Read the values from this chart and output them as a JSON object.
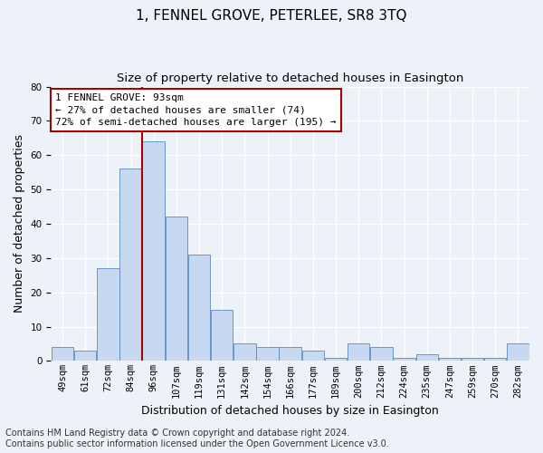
{
  "title": "1, FENNEL GROVE, PETERLEE, SR8 3TQ",
  "subtitle": "Size of property relative to detached houses in Easington",
  "xlabel": "Distribution of detached houses by size in Easington",
  "ylabel": "Number of detached properties",
  "categories": [
    "49sqm",
    "61sqm",
    "72sqm",
    "84sqm",
    "96sqm",
    "107sqm",
    "119sqm",
    "131sqm",
    "142sqm",
    "154sqm",
    "166sqm",
    "177sqm",
    "189sqm",
    "200sqm",
    "212sqm",
    "224sqm",
    "235sqm",
    "247sqm",
    "259sqm",
    "270sqm",
    "282sqm"
  ],
  "values": [
    4,
    3,
    27,
    56,
    64,
    42,
    31,
    15,
    5,
    4,
    4,
    3,
    1,
    5,
    4,
    1,
    2,
    1,
    1,
    1,
    5
  ],
  "bar_color": "#c6d9f0",
  "bar_edge_color": "#5a8abf",
  "vline_color": "#aa0000",
  "vline_bin": 4,
  "annotation_text": "1 FENNEL GROVE: 93sqm\n← 27% of detached houses are smaller (74)\n72% of semi-detached houses are larger (195) →",
  "annotation_box_color": "#ffffff",
  "annotation_box_edge": "#aa0000",
  "ylim": [
    0,
    80
  ],
  "yticks": [
    0,
    10,
    20,
    30,
    40,
    50,
    60,
    70,
    80
  ],
  "footer1": "Contains HM Land Registry data © Crown copyright and database right 2024.",
  "footer2": "Contains public sector information licensed under the Open Government Licence v3.0.",
  "title_fontsize": 11,
  "subtitle_fontsize": 9.5,
  "axis_label_fontsize": 9,
  "tick_fontsize": 7.5,
  "annotation_fontsize": 8,
  "footer_fontsize": 7,
  "bg_color": "#edf2f9",
  "grid_color": "#ffffff",
  "n_bins": 21
}
